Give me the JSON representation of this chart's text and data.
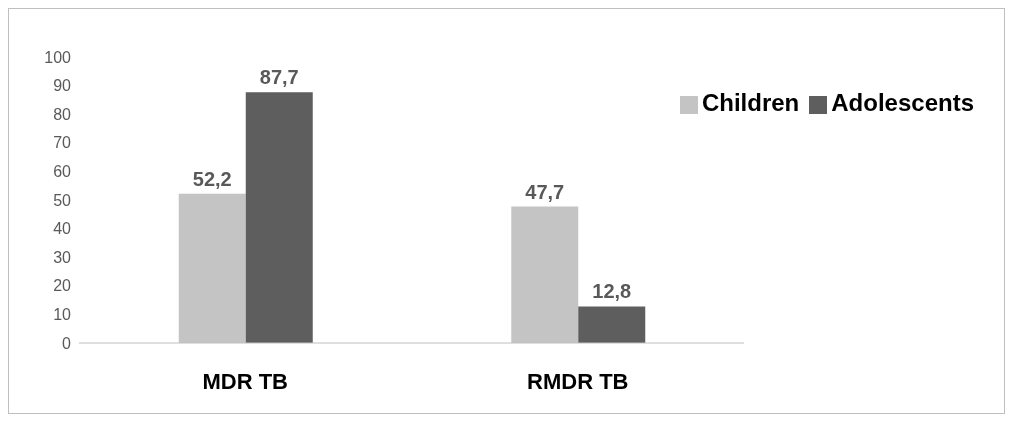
{
  "chart_data": {
    "type": "bar",
    "categories": [
      "MDR TB",
      "RMDR TB"
    ],
    "series": [
      {
        "name": "Children",
        "color": "#c4c4c4",
        "values": [
          52.2,
          47.7
        ],
        "value_labels": [
          "52,2",
          "47,7"
        ]
      },
      {
        "name": "Adolescents",
        "color": "#5e5e5e",
        "values": [
          87.7,
          12.8
        ],
        "value_labels": [
          "87,7",
          "12,8"
        ]
      }
    ],
    "ylim": [
      0,
      100
    ],
    "yticks": [
      0,
      10,
      20,
      30,
      40,
      50,
      60,
      70,
      80,
      90,
      100
    ],
    "grid": false,
    "legend": "top right"
  }
}
